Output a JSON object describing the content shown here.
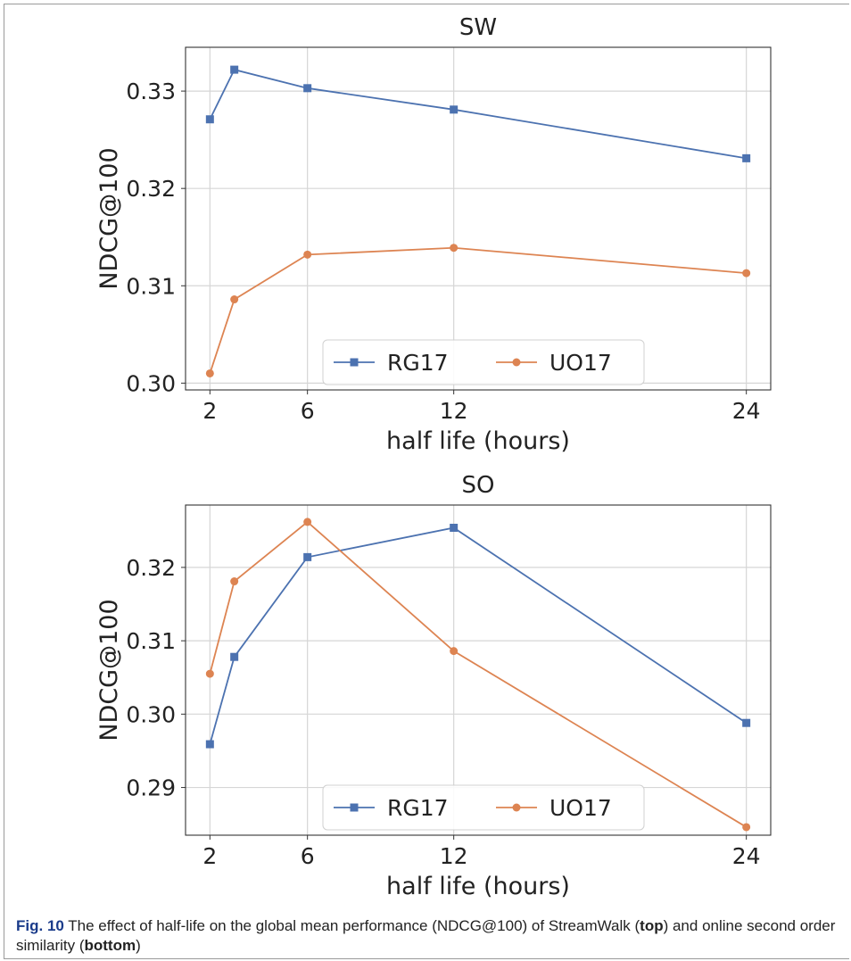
{
  "charts": {
    "top": {
      "title": "SW",
      "xlabel": "half life (hours)",
      "ylabel": "NDCG@100",
      "xticks": [
        "2",
        "6",
        "12",
        "24"
      ],
      "yticks": [
        "0.30",
        "0.31",
        "0.32",
        "0.33"
      ],
      "legend": [
        "RG17",
        "UO17"
      ]
    },
    "bottom": {
      "title": "SO",
      "xlabel": "half life (hours)",
      "ylabel": "NDCG@100",
      "xticks": [
        "2",
        "6",
        "12",
        "24"
      ],
      "yticks": [
        "0.29",
        "0.30",
        "0.31",
        "0.32"
      ],
      "legend": [
        "RG17",
        "UO17"
      ]
    }
  },
  "caption": {
    "fig_label": "Fig. 10",
    "text_1": "The effect of half-life on the global mean performance (NDCG@100) of StreamWalk (",
    "bold_1": "top",
    "text_2": ") and online second order similarity (",
    "bold_2": "bottom",
    "text_3": ")"
  },
  "colors": {
    "RG17": "#4c72b0",
    "UO17": "#dd8452",
    "grid": "#d6d6d6",
    "axis": "#333333"
  },
  "chart_data": [
    {
      "type": "line",
      "title": "SW",
      "xlabel": "half life (hours)",
      "ylabel": "NDCG@100",
      "xlim": [
        1.0,
        25.0
      ],
      "ylim": [
        0.2993,
        0.3345
      ],
      "xtick_values": [
        2,
        6,
        12,
        24
      ],
      "ytick_values": [
        0.3,
        0.31,
        0.32,
        0.33
      ],
      "grid": true,
      "legend_position": "lower center",
      "x": [
        2,
        3,
        6,
        12,
        24
      ],
      "series": [
        {
          "name": "RG17",
          "marker": "square",
          "values": [
            0.3271,
            0.3322,
            0.3303,
            0.3281,
            0.3231
          ]
        },
        {
          "name": "UO17",
          "marker": "circle",
          "values": [
            0.301,
            0.3086,
            0.3132,
            0.3139,
            0.3113
          ]
        }
      ]
    },
    {
      "type": "line",
      "title": "SO",
      "xlabel": "half life (hours)",
      "ylabel": "NDCG@100",
      "xlim": [
        1.0,
        25.0
      ],
      "ylim": [
        0.2835,
        0.3285
      ],
      "xtick_values": [
        2,
        6,
        12,
        24
      ],
      "ytick_values": [
        0.29,
        0.3,
        0.31,
        0.32
      ],
      "grid": true,
      "legend_position": "lower center",
      "x": [
        2,
        3,
        6,
        12,
        24
      ],
      "series": [
        {
          "name": "RG17",
          "marker": "square",
          "values": [
            0.2959,
            0.3078,
            0.3214,
            0.3254,
            0.2988
          ]
        },
        {
          "name": "UO17",
          "marker": "circle",
          "values": [
            0.3055,
            0.3181,
            0.3262,
            0.3086,
            0.2846
          ]
        }
      ]
    }
  ]
}
